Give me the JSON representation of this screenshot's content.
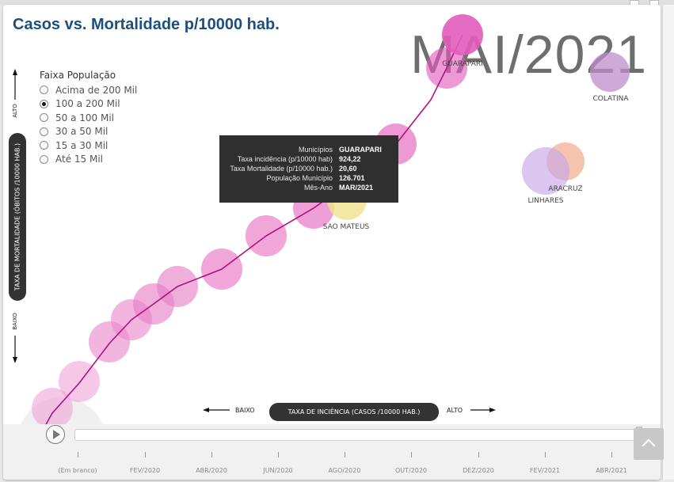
{
  "title": "Casos vs. Mortalidade p/10000 hab.",
  "month_label": "MAI/2021",
  "legend": {
    "title": "Faixa População",
    "items": [
      {
        "label": "Acima de 200 Mil",
        "checked": false
      },
      {
        "label": "100 a 200 Mil",
        "checked": true
      },
      {
        "label": "50 a 100 Mil",
        "checked": false
      },
      {
        "label": "30 a 50 Mil",
        "checked": false
      },
      {
        "label": "15 a 30 Mil",
        "checked": false
      },
      {
        "label": "Até 15 Mil",
        "checked": false
      }
    ]
  },
  "axes": {
    "y_title": "TAXA DE MORTALIDADE (ÓBITOS /10000 HAB.)",
    "y_high": "ALTO",
    "y_low": "BAIXO",
    "x_title": "TAXA DE INCIÊNCIA (CASOS /10000 HAB.)",
    "x_low": "BAIXO",
    "x_high": "ALTO"
  },
  "tooltip": {
    "rows": [
      {
        "label": "Municípios",
        "value": "GUARAPARI"
      },
      {
        "label": "Taxa incidência (p/10000 hab)",
        "value": "924,22"
      },
      {
        "label": "Taxa Mortalidade (p/10000 hab.)",
        "value": "20,60"
      },
      {
        "label": "População Município",
        "value": "126.701"
      },
      {
        "label": "Mês-Ano",
        "value": "MAR/2021"
      }
    ]
  },
  "timeline": {
    "labels": [
      "(Em branco)",
      "FEV/2020",
      "ABR/2020",
      "JUN/2020",
      "AGO/2020",
      "OUT/2020",
      "DEZ/2020",
      "FEV/2021",
      "ABR/2021"
    ]
  },
  "colors": {
    "trail": "#e77cc6",
    "trail_line": "#b0127c",
    "guarapari": "#e35bbd",
    "colatina": "#bf8cc9",
    "linhares": "#c6a7e6",
    "aracruz": "#f1a98c",
    "sao_mateus": "#f1e08c",
    "title": "#1d4f7d"
  },
  "chart_data": {
    "type": "scatter",
    "title": "Casos vs. Mortalidade p/10000 hab.",
    "xlabel": "TAXA DE INCIÊNCIA (CASOS /10000 HAB.)",
    "ylabel": "TAXA DE MORTALIDADE (ÓBITOS /10000 HAB.)",
    "frame": "MAI/2021",
    "highlighted": {
      "name": "GUARAPARI",
      "x": 924.22,
      "y": 20.6,
      "population": 126701,
      "month": "MAR/2021"
    },
    "points": [
      {
        "name": "GUARAPARI",
        "label": "GUARAPARI"
      },
      {
        "name": "COLATINA",
        "label": "COLATINA"
      },
      {
        "name": "ARACRUZ",
        "label": "ARACRUZ"
      },
      {
        "name": "LINHARES",
        "label": "LINHARES"
      },
      {
        "name": "SAO MATEUS",
        "label": "SAO MATEUS"
      }
    ]
  }
}
